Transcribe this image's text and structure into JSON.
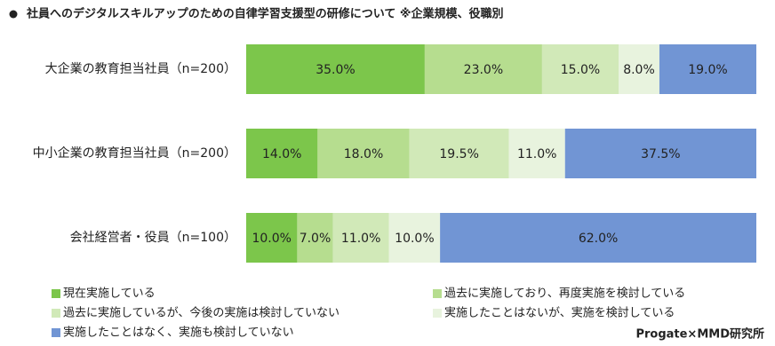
{
  "chart_data": {
    "type": "stacked-bar-horizontal",
    "title": "社員へのデジタルスキルアップのための自律学習支援型の研修について ※企業規模、役職別",
    "source": "Progate×MMD研究所",
    "categories": [
      "大企業の教育担当社員（n=200）",
      "中小企業の教育担当社員（n=200）",
      "会社経営者・役員（n=100）"
    ],
    "series": [
      {
        "name": "現在実施している",
        "color": "#7cc64b",
        "values": [
          35,
          14,
          10
        ],
        "value_labels": [
          "35.0%",
          "14.0%",
          "10.0%"
        ]
      },
      {
        "name": "過去に実施しており、再度実施を検討している",
        "color": "#b6dd8f",
        "values": [
          23,
          18,
          7
        ],
        "value_labels": [
          "23.0%",
          "18.0%",
          "7.0%"
        ]
      },
      {
        "name": "過去に実施しているが、今後の実施は検討していない",
        "color": "#d1e9b8",
        "values": [
          15,
          19.5,
          11
        ],
        "value_labels": [
          "15.0%",
          "19.5%",
          "11.0%"
        ]
      },
      {
        "name": "実施したことはないが、実施を検討している",
        "color": "#e8f3de",
        "values": [
          8,
          11,
          10
        ],
        "value_labels": [
          "8.0%",
          "11.0%",
          "10.0%"
        ]
      },
      {
        "name": "実施したことはなく、実施も検討していない",
        "color": "#7195d4",
        "values": [
          19,
          37.5,
          62
        ],
        "value_labels": [
          "19.0%",
          "37.5%",
          "62.0%"
        ]
      }
    ]
  }
}
